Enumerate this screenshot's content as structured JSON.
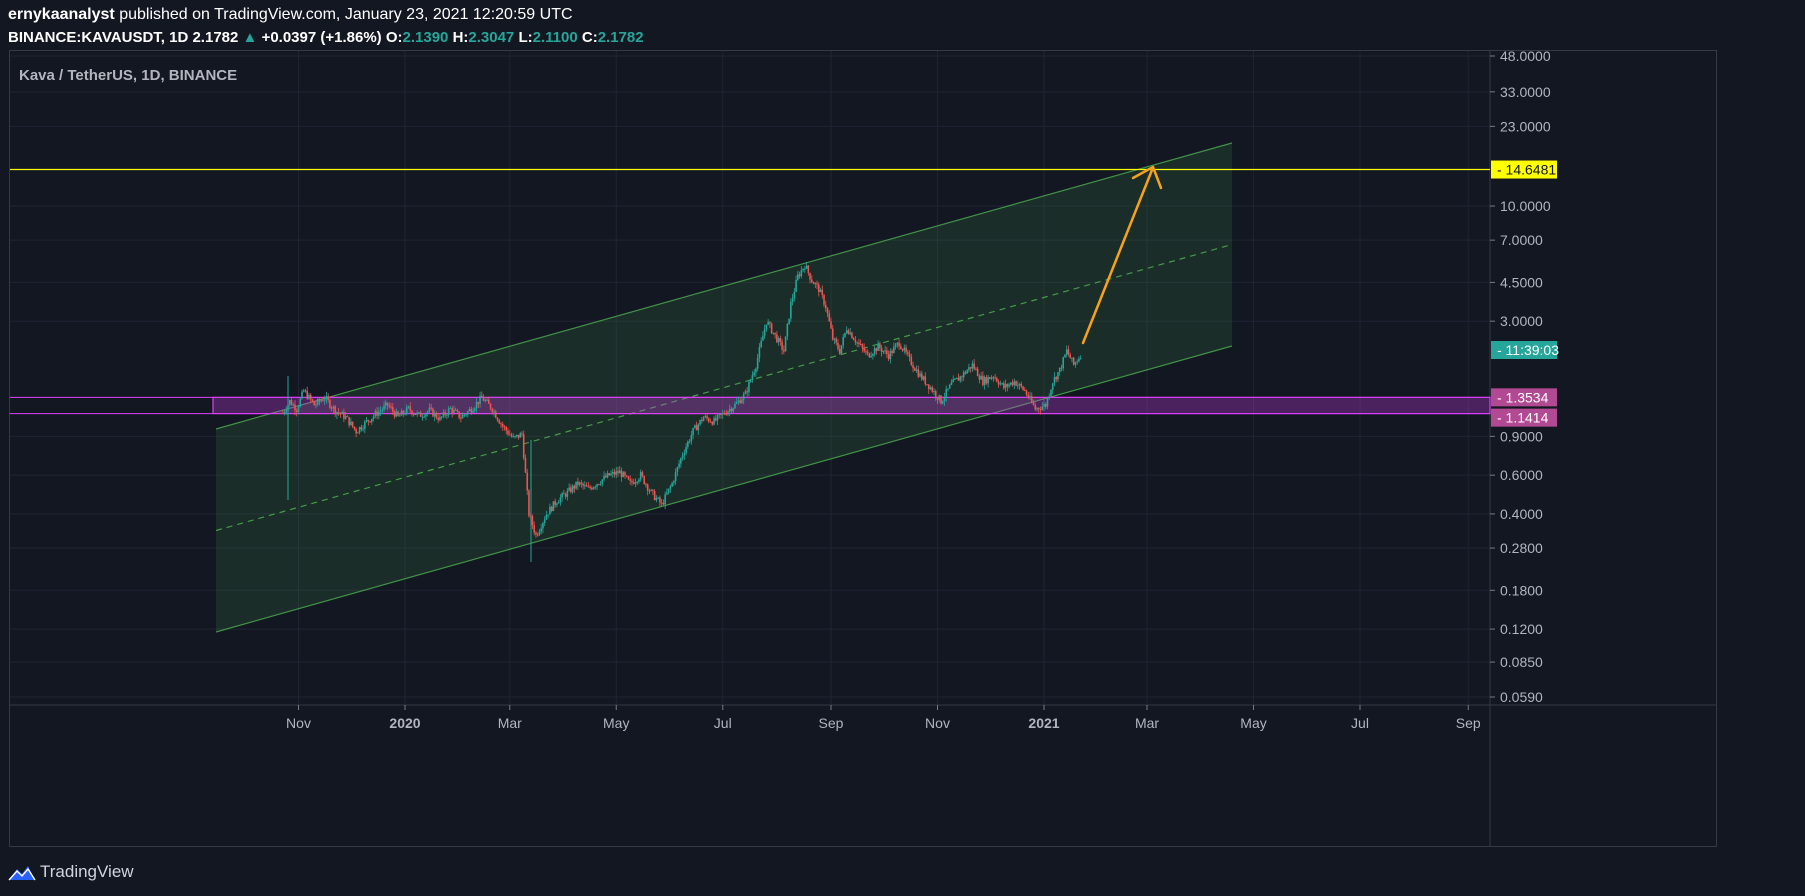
{
  "header": {
    "author": "ernykaanalyst",
    "published": "published on TradingView.com, January 23, 2021 12:20:59 UTC",
    "symbol": "BINANCE:KAVAUSDT, 1D",
    "last": "2.1782",
    "change": "+0.0397 (+1.86%)",
    "o_label": "O:",
    "o": "2.1390",
    "h_label": "H:",
    "h": "2.3047",
    "l_label": "L:",
    "l": "2.1100",
    "c_label": "C:",
    "c": "2.1782"
  },
  "symbol_title": "Kava / TetherUS, 1D, BINANCE",
  "brand": "TradingView",
  "chart_data": {
    "type": "candlestick",
    "scale": "log",
    "y_ticks": [
      "48.0000",
      "33.0000",
      "23.0000",
      "10.0000",
      "7.0000",
      "4.5000",
      "3.0000",
      "0.9000",
      "0.6000",
      "0.4000",
      "0.2800",
      "0.1800",
      "0.1200",
      "0.0850",
      "0.0590"
    ],
    "x_ticks": [
      "Nov",
      "2020",
      "Mar",
      "May",
      "Jul",
      "Sep",
      "Nov",
      "2021",
      "Mar",
      "May",
      "Jul",
      "Sep"
    ],
    "price_labels": {
      "target": "14.6481",
      "countdown": "11:39:03",
      "zone_top": "1.3534",
      "zone_bottom": "1.1414"
    },
    "colors": {
      "up": "#26a69a",
      "down": "#ef5350",
      "target_line": "#ffff00",
      "zone": "#e040fb",
      "channel": "#4caf50",
      "arrow": "#f7a21b"
    },
    "series": [
      {
        "name": "KAVAUSDT",
        "points": [
          [
            "2019-10-23",
            1.15
          ],
          [
            "2019-10-27",
            1.3
          ],
          [
            "2019-10-31",
            1.2
          ],
          [
            "2019-11-04",
            1.45
          ],
          [
            "2019-11-10",
            1.25
          ],
          [
            "2019-11-16",
            1.35
          ],
          [
            "2019-11-22",
            1.18
          ],
          [
            "2019-11-28",
            1.1
          ],
          [
            "2019-12-04",
            0.95
          ],
          [
            "2019-12-10",
            1.05
          ],
          [
            "2019-12-16",
            1.15
          ],
          [
            "2019-12-22",
            1.25
          ],
          [
            "2019-12-28",
            1.1
          ],
          [
            "2020-01-03",
            1.2
          ],
          [
            "2020-01-09",
            1.12
          ],
          [
            "2020-01-15",
            1.18
          ],
          [
            "2020-01-21",
            1.08
          ],
          [
            "2020-01-27",
            1.2
          ],
          [
            "2020-02-02",
            1.1
          ],
          [
            "2020-02-08",
            1.2
          ],
          [
            "2020-02-14",
            1.35
          ],
          [
            "2020-02-20",
            1.2
          ],
          [
            "2020-02-26",
            1.0
          ],
          [
            "2020-03-03",
            0.88
          ],
          [
            "2020-03-08",
            0.92
          ],
          [
            "2020-03-12",
            0.4
          ],
          [
            "2020-03-16",
            0.32
          ],
          [
            "2020-03-22",
            0.4
          ],
          [
            "2020-03-28",
            0.46
          ],
          [
            "2020-04-03",
            0.5
          ],
          [
            "2020-04-09",
            0.55
          ],
          [
            "2020-04-15",
            0.52
          ],
          [
            "2020-04-21",
            0.56
          ],
          [
            "2020-04-27",
            0.6
          ],
          [
            "2020-05-03",
            0.62
          ],
          [
            "2020-05-09",
            0.55
          ],
          [
            "2020-05-15",
            0.6
          ],
          [
            "2020-05-21",
            0.5
          ],
          [
            "2020-05-27",
            0.44
          ],
          [
            "2020-06-02",
            0.55
          ],
          [
            "2020-06-08",
            0.75
          ],
          [
            "2020-06-14",
            0.95
          ],
          [
            "2020-06-20",
            1.1
          ],
          [
            "2020-06-26",
            1.05
          ],
          [
            "2020-07-02",
            1.15
          ],
          [
            "2020-07-08",
            1.25
          ],
          [
            "2020-07-14",
            1.4
          ],
          [
            "2020-07-20",
            1.9
          ],
          [
            "2020-07-26",
            3.0
          ],
          [
            "2020-08-01",
            2.5
          ],
          [
            "2020-08-05",
            2.2
          ],
          [
            "2020-08-09",
            3.6
          ],
          [
            "2020-08-13",
            4.8
          ],
          [
            "2020-08-17",
            5.4
          ],
          [
            "2020-08-21",
            4.6
          ],
          [
            "2020-08-25",
            4.2
          ],
          [
            "2020-08-29",
            3.5
          ],
          [
            "2020-09-02",
            2.5
          ],
          [
            "2020-09-06",
            2.2
          ],
          [
            "2020-09-10",
            2.8
          ],
          [
            "2020-09-16",
            2.4
          ],
          [
            "2020-09-22",
            2.1
          ],
          [
            "2020-09-28",
            2.3
          ],
          [
            "2020-10-04",
            2.1
          ],
          [
            "2020-10-10",
            2.4
          ],
          [
            "2020-10-16",
            2.0
          ],
          [
            "2020-10-22",
            1.7
          ],
          [
            "2020-10-28",
            1.5
          ],
          [
            "2020-11-03",
            1.3
          ],
          [
            "2020-11-09",
            1.55
          ],
          [
            "2020-11-15",
            1.7
          ],
          [
            "2020-11-21",
            1.9
          ],
          [
            "2020-11-27",
            1.6
          ],
          [
            "2020-12-03",
            1.7
          ],
          [
            "2020-12-09",
            1.5
          ],
          [
            "2020-12-15",
            1.6
          ],
          [
            "2020-12-21",
            1.45
          ],
          [
            "2020-12-27",
            1.2
          ],
          [
            "2021-01-02",
            1.25
          ],
          [
            "2021-01-06",
            1.6
          ],
          [
            "2021-01-10",
            1.8
          ],
          [
            "2021-01-14",
            2.2
          ],
          [
            "2021-01-18",
            1.9
          ],
          [
            "2021-01-23",
            2.18
          ]
        ]
      }
    ]
  }
}
